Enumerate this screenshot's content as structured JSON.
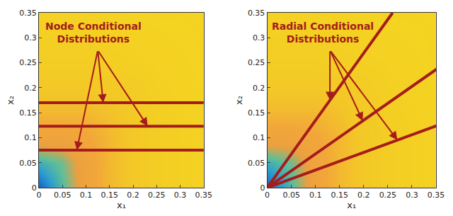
{
  "chart_data": [
    {
      "type": "heatmap",
      "annotation": "Node Conditional\nDistributions",
      "x_label": "x₁",
      "y_label": "x₂",
      "x": [
        0,
        0.05,
        0.1,
        0.15,
        0.2,
        0.25,
        0.3,
        0.35
      ],
      "y": [
        0,
        0.05,
        0.1,
        0.15,
        0.2,
        0.25,
        0.3,
        0.35
      ],
      "z": [
        [
          1.0,
          0.75,
          0.45,
          0.3,
          0.2,
          0.12,
          0.08,
          0.05
        ],
        [
          0.8,
          0.7,
          0.45,
          0.3,
          0.2,
          0.12,
          0.08,
          0.05
        ],
        [
          0.45,
          0.45,
          0.4,
          0.3,
          0.2,
          0.12,
          0.08,
          0.05
        ],
        [
          0.3,
          0.3,
          0.3,
          0.25,
          0.18,
          0.1,
          0.07,
          0.04
        ],
        [
          0.2,
          0.2,
          0.2,
          0.18,
          0.14,
          0.08,
          0.05,
          0.03
        ],
        [
          0.12,
          0.12,
          0.12,
          0.1,
          0.08,
          0.06,
          0.04,
          0.02
        ],
        [
          0.08,
          0.08,
          0.08,
          0.07,
          0.05,
          0.04,
          0.03,
          0.02
        ],
        [
          0.05,
          0.05,
          0.05,
          0.04,
          0.03,
          0.02,
          0.02,
          0.01
        ]
      ],
      "xlim": [
        0,
        0.35
      ],
      "ylim": [
        0,
        0.35
      ],
      "xticks": [
        0,
        0.05,
        0.1,
        0.15,
        0.2,
        0.25,
        0.3,
        0.35
      ],
      "yticks": [
        0,
        0.05,
        0.1,
        0.15,
        0.2,
        0.25,
        0.3,
        0.35
      ],
      "lines": [
        {
          "x": [
            0,
            0.35
          ],
          "y": [
            0.075,
            0.075
          ]
        },
        {
          "x": [
            0,
            0.35
          ],
          "y": [
            0.123,
            0.123
          ]
        },
        {
          "x": [
            0,
            0.35
          ],
          "y": [
            0.17,
            0.17
          ]
        }
      ],
      "color": "#a51c1c"
    },
    {
      "type": "heatmap",
      "annotation": "Radial Conditional\nDistributions",
      "x_label": "x₁",
      "y_label": "x₂",
      "x": [
        0,
        0.05,
        0.1,
        0.15,
        0.2,
        0.25,
        0.3,
        0.35
      ],
      "y": [
        0,
        0.05,
        0.1,
        0.15,
        0.2,
        0.25,
        0.3,
        0.35
      ],
      "z": [
        [
          1.0,
          0.75,
          0.45,
          0.3,
          0.2,
          0.12,
          0.08,
          0.05
        ],
        [
          0.8,
          0.7,
          0.45,
          0.3,
          0.2,
          0.12,
          0.08,
          0.05
        ],
        [
          0.45,
          0.45,
          0.4,
          0.3,
          0.2,
          0.12,
          0.08,
          0.05
        ],
        [
          0.3,
          0.3,
          0.3,
          0.25,
          0.18,
          0.1,
          0.07,
          0.04
        ],
        [
          0.2,
          0.2,
          0.2,
          0.18,
          0.14,
          0.08,
          0.05,
          0.03
        ],
        [
          0.12,
          0.12,
          0.12,
          0.1,
          0.08,
          0.06,
          0.04,
          0.02
        ],
        [
          0.08,
          0.08,
          0.08,
          0.07,
          0.05,
          0.04,
          0.03,
          0.02
        ],
        [
          0.05,
          0.05,
          0.05,
          0.04,
          0.03,
          0.02,
          0.02,
          0.01
        ]
      ],
      "xlim": [
        0,
        0.35
      ],
      "ylim": [
        0,
        0.35
      ],
      "xticks": [
        0,
        0.05,
        0.1,
        0.15,
        0.2,
        0.25,
        0.3,
        0.35
      ],
      "yticks": [
        0,
        0.05,
        0.1,
        0.15,
        0.2,
        0.25,
        0.3,
        0.35
      ],
      "lines": [
        {
          "x": [
            0,
            0.26
          ],
          "y": [
            0,
            0.35
          ]
        },
        {
          "x": [
            0,
            0.36
          ],
          "y": [
            0,
            0.243
          ]
        },
        {
          "x": [
            0,
            0.36
          ],
          "y": [
            0,
            0.127
          ]
        }
      ],
      "color": "#a51c1c"
    }
  ]
}
